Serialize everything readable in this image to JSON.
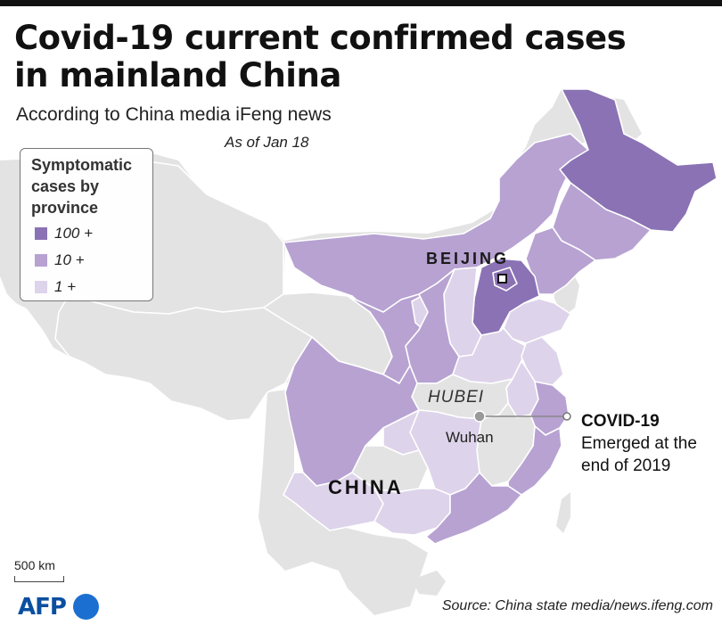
{
  "title": "Covid-19 current confirmed cases in mainland China",
  "subtitle": "According to China media iFeng news",
  "date": "As of Jan 18",
  "legend": {
    "title": "Symptomatic cases by province",
    "items": [
      {
        "label": "100 +",
        "color": "#8a72b4"
      },
      {
        "label": "10 +",
        "color": "#b7a2d2"
      },
      {
        "label": "1 +",
        "color": "#ddd3ea"
      }
    ]
  },
  "colors": {
    "land_gray": "#e3e3e3",
    "border": "#ffffff",
    "dark": "#8a72b4",
    "medium": "#b7a2d2",
    "light": "#ddd3ea",
    "sea": "#ffffff"
  },
  "labels": {
    "beijing": "BEIJING",
    "hubei": "HUBEI",
    "wuhan": "Wuhan",
    "china": "CHINA"
  },
  "annotation": {
    "head": "COVID-19",
    "body": "Emerged at the end of 2019"
  },
  "scale": "500 km",
  "logo": "AFP",
  "source": "Source: China state media/news.ifeng.com"
}
